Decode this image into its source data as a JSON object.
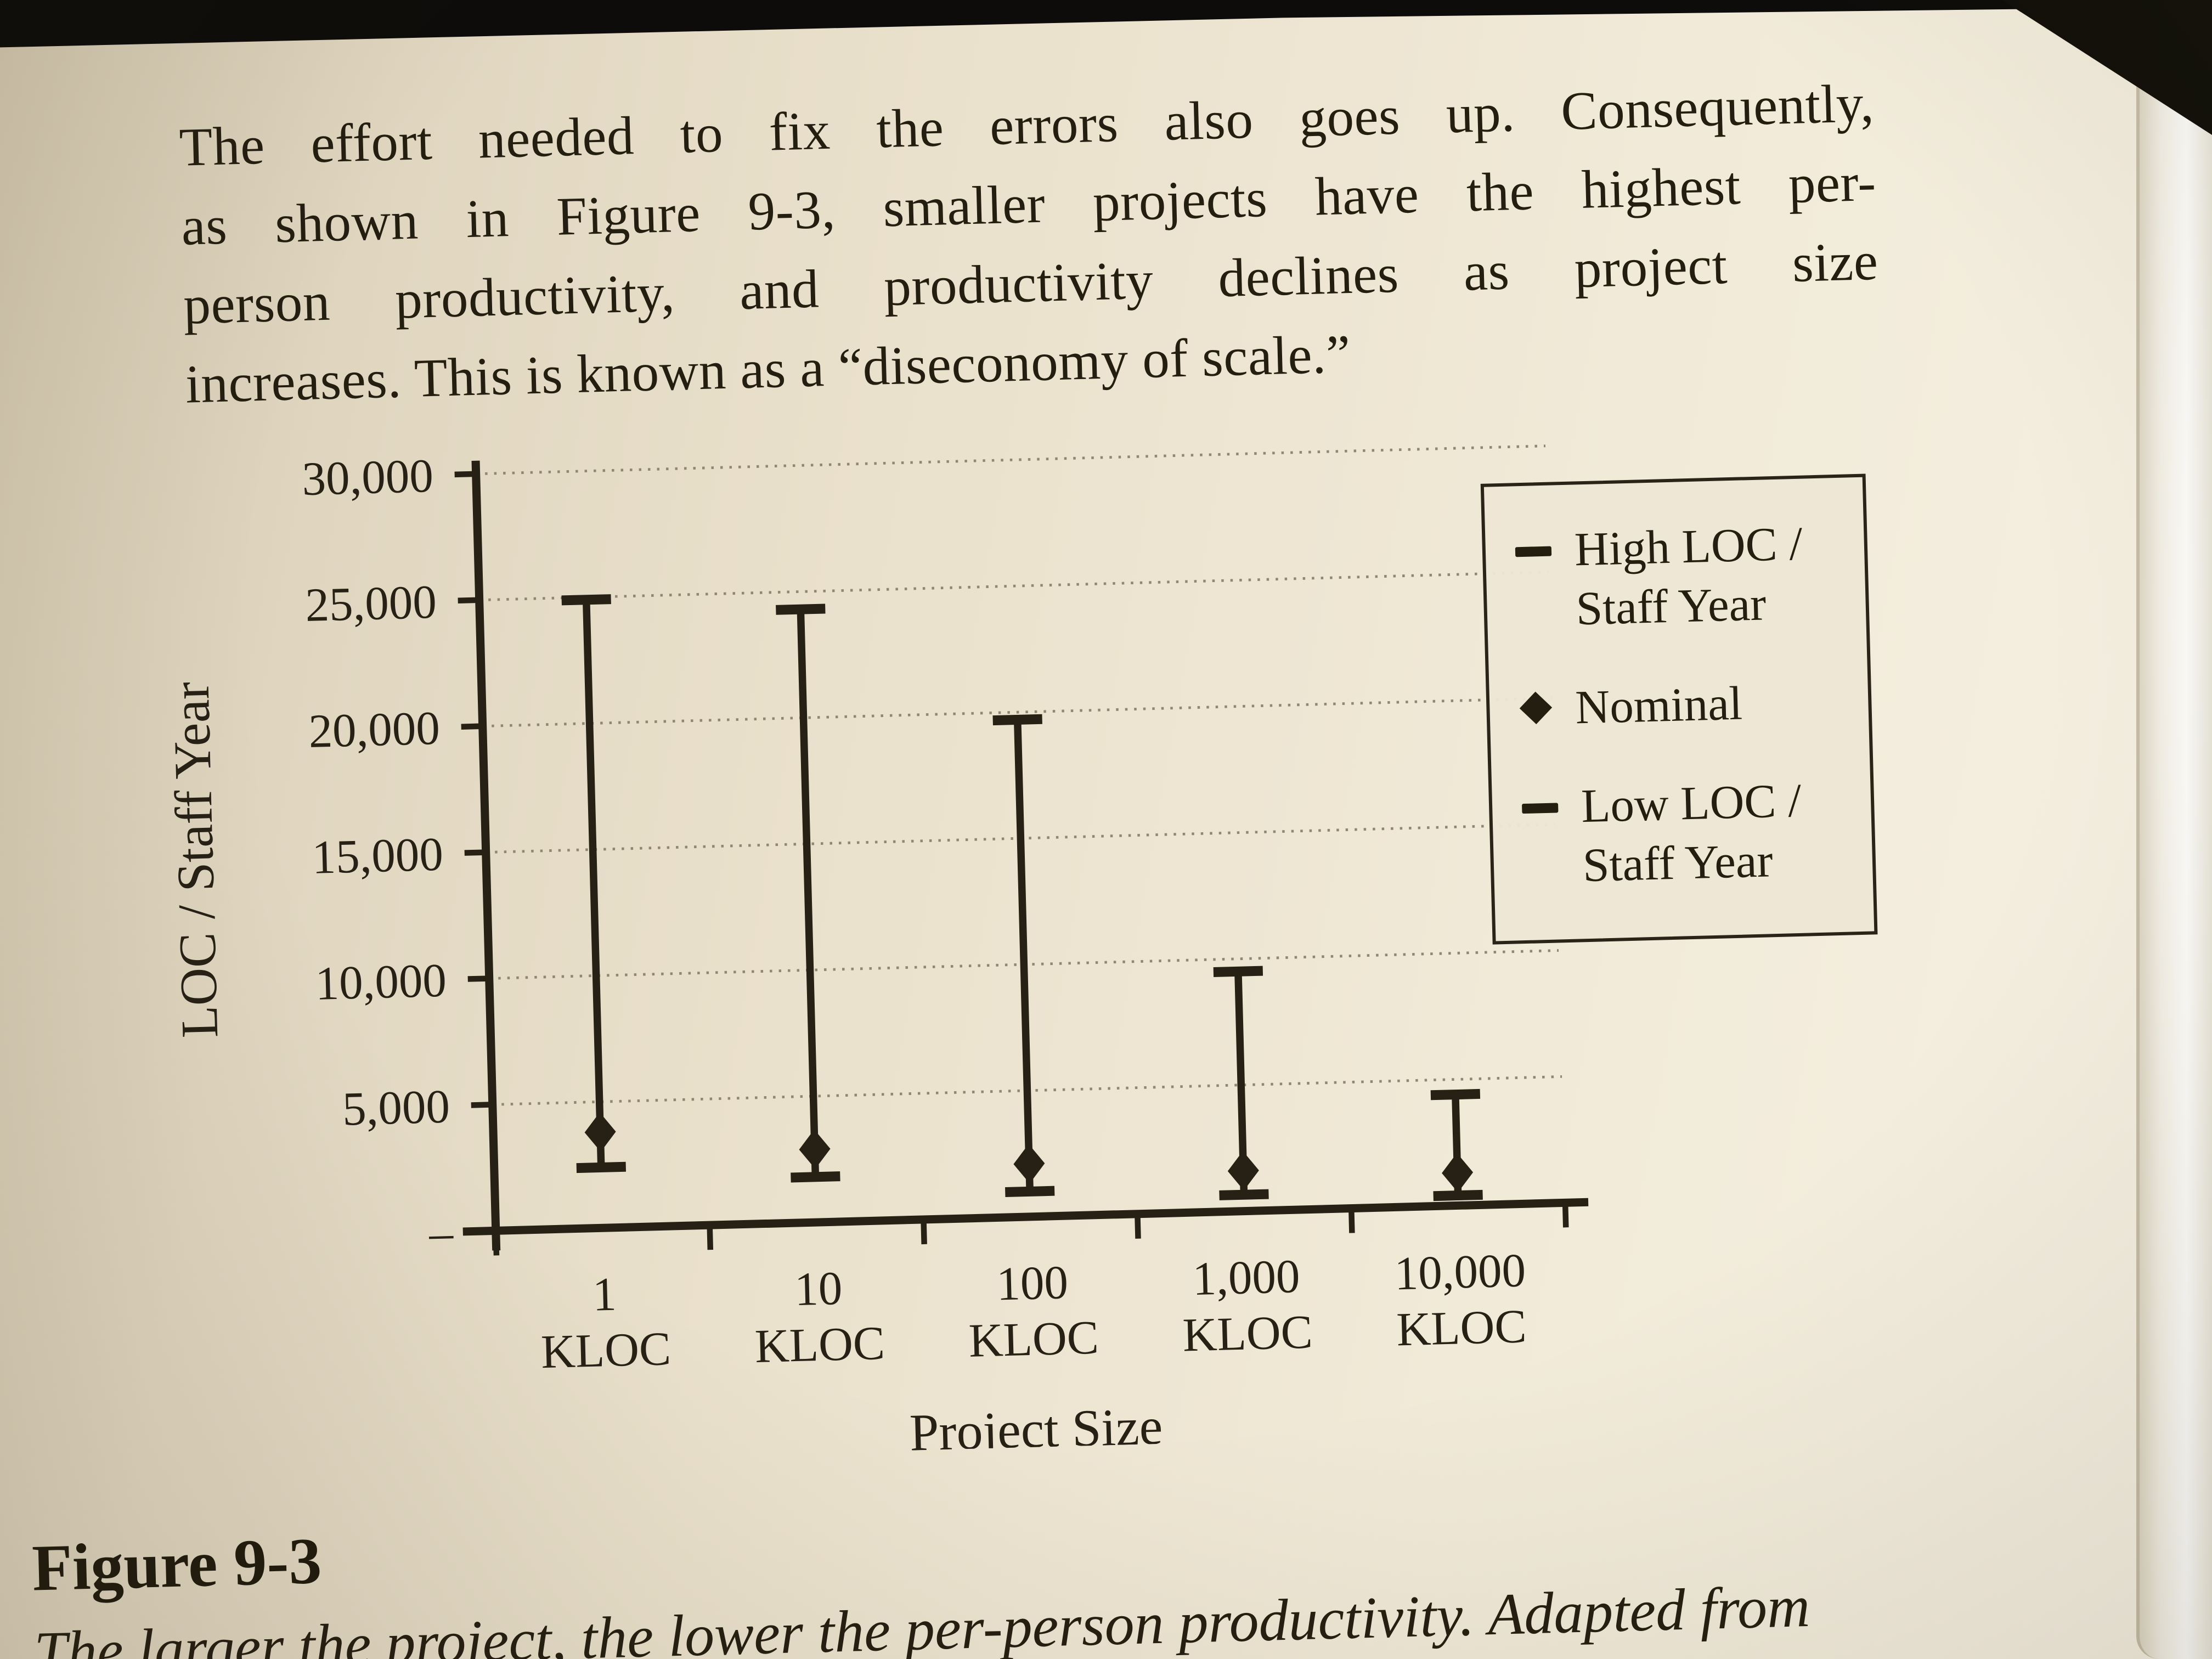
{
  "page": {
    "paragraph_lines": [
      "The effort needed to fix the errors also goes up. Consequently,",
      "as shown in Figure 9-3, smaller projects have the highest per-",
      "person productivity, and productivity declines as project size",
      "increases. This is known as a “diseconomy of scale.”"
    ],
    "figure_label": "Figure 9-3",
    "figure_caption": "The larger the project, the lower the per-person productivity. Adapted from"
  },
  "chart_data": {
    "type": "range-bar",
    "title": "",
    "xlabel": "Project Size",
    "ylabel": "LOC / Staff Year",
    "ylim": [
      0,
      30000
    ],
    "ytick_interval": 5000,
    "ytick_labels": [
      "–",
      "5,000",
      "10,000",
      "15,000",
      "20,000",
      "25,000",
      "30,000"
    ],
    "grid": "horizontal-dotted",
    "legend_position": "top-right",
    "categories": [
      "1 KLOC",
      "10 KLOC",
      "100 KLOC",
      "1,000 KLOC",
      "10,000 KLOC"
    ],
    "series": [
      {
        "name": "High LOC / Staff Year",
        "marker": "dash",
        "values": [
          24900,
          24300,
          19700,
          9500,
          4400
        ]
      },
      {
        "name": "Nominal",
        "marker": "diamond",
        "values": [
          3800,
          2900,
          2100,
          1600,
          1300
        ]
      },
      {
        "name": "Low LOC / Staff Year",
        "marker": "dash",
        "values": [
          2400,
          1800,
          1000,
          650,
          400
        ]
      }
    ],
    "legend": [
      {
        "symbol": "dash",
        "label": "High LOC / Staff Year"
      },
      {
        "symbol": "diamond",
        "label": "Nominal"
      },
      {
        "symbol": "dash",
        "label": "Low LOC / Staff Year"
      }
    ],
    "ink_color": "#262015",
    "gridline_color": "#8f8674"
  }
}
